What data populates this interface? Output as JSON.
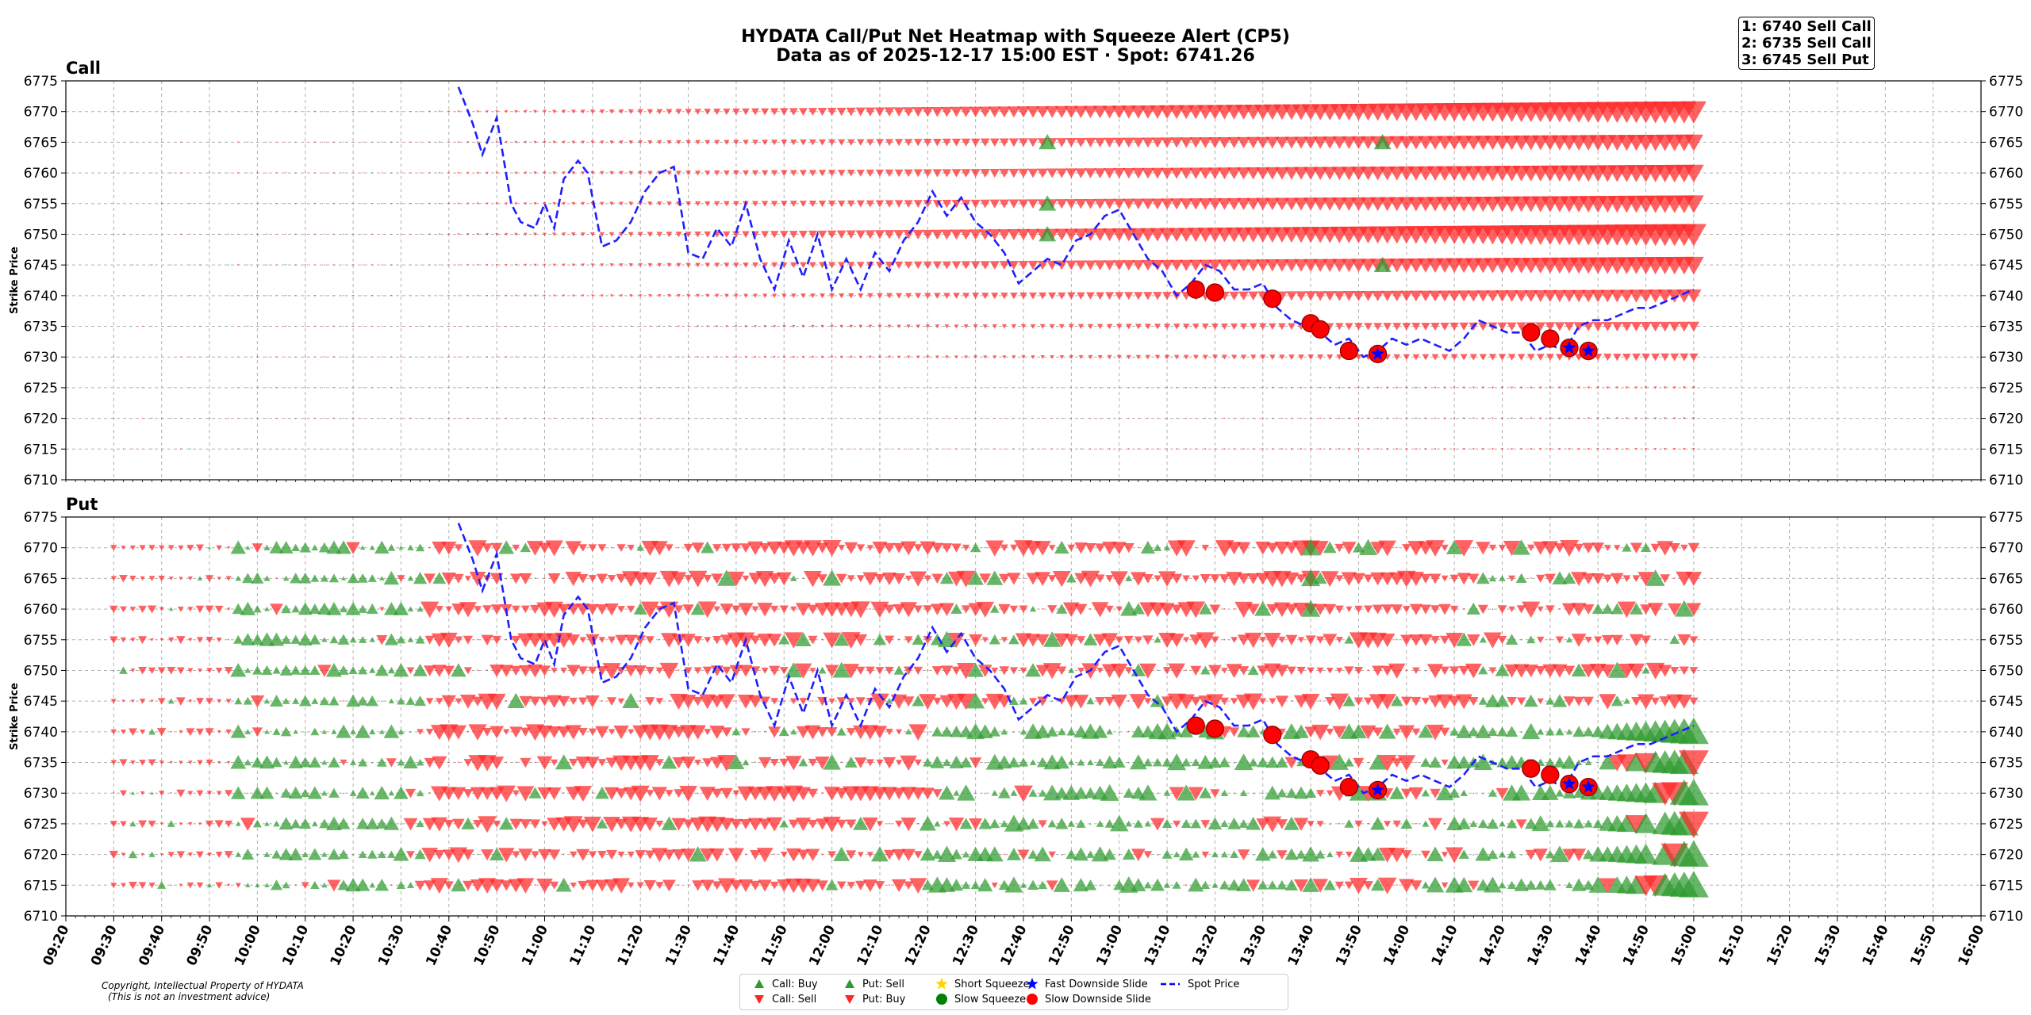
{
  "header": {
    "title_line1": "HYDATA Call/Put Net Heatmap with Squeeze Alert (CP5)",
    "title_line2": "Data as of 2025-12-17 15:00 EST · Spot: 6741.26"
  },
  "rank_box": [
    "1: 6740 Sell Call",
    "2: 6735 Sell Call",
    "3: 6745 Sell Put"
  ],
  "copyright": [
    "Copyright, Intellectual Property of HYDATA",
    "(This is not an investment advice)"
  ],
  "colors": {
    "buy_green": "#2e9a2e",
    "sell_red": "#ff2626",
    "spot_line": "#1f1fff",
    "squeeze_yellow": "#ffd400",
    "slide_red": "#ff0000",
    "slide_blue": "#0000ff"
  },
  "legend": [
    {
      "label": "Call: Buy",
      "marker": "triangle-up",
      "color": "#2e9a2e"
    },
    {
      "label": "Call: Sell",
      "marker": "triangle-down",
      "color": "#ff2626"
    },
    {
      "label": "Put: Sell",
      "marker": "triangle-up",
      "color": "#2e9a2e"
    },
    {
      "label": "Put: Buy",
      "marker": "triangle-down",
      "color": "#ff2626"
    },
    {
      "label": "Short Squeeze",
      "marker": "star",
      "color": "#ffd400"
    },
    {
      "label": "Slow Squeeze",
      "marker": "circle",
      "color": "#008000"
    },
    {
      "label": "Fast Downside Slide",
      "marker": "star",
      "color": "#0000ff"
    },
    {
      "label": "Slow Downside Slide",
      "marker": "circle",
      "color": "#ff0000"
    },
    {
      "label": "Spot Price",
      "marker": "dashed-line",
      "color": "#0000ff"
    }
  ],
  "chart_data": [
    {
      "type": "scatter",
      "panel": "Call",
      "title": "Call",
      "ylabel": "Strike Price",
      "ylim": [
        6710,
        6775
      ],
      "yticks": [
        6710,
        6715,
        6720,
        6725,
        6730,
        6735,
        6740,
        6745,
        6750,
        6755,
        6760,
        6765,
        6770,
        6775
      ],
      "strikes": [
        6715,
        6720,
        6725,
        6730,
        6735,
        6740,
        6745,
        6750,
        6755,
        6760,
        6765,
        6770
      ],
      "bubble_rows": [
        {
          "strike": 6770,
          "side": "sell",
          "from": "10:30",
          "to": "15:00",
          "size_start": 0.05,
          "size_end": 1.0
        },
        {
          "strike": 6765,
          "side": "sell",
          "from": "10:30",
          "to": "15:00",
          "size_start": 0.05,
          "size_end": 0.75
        },
        {
          "strike": 6760,
          "side": "sell",
          "from": "10:30",
          "to": "15:00",
          "size_start": 0.05,
          "size_end": 0.8
        },
        {
          "strike": 6755,
          "side": "sell",
          "from": "10:30",
          "to": "15:00",
          "size_start": 0.05,
          "size_end": 0.8
        },
        {
          "strike": 6750,
          "side": "sell",
          "from": "10:30",
          "to": "15:00",
          "size_start": 0.05,
          "size_end": 1.0
        },
        {
          "strike": 6745,
          "side": "sell",
          "from": "10:30",
          "to": "15:00",
          "size_start": 0.03,
          "size_end": 0.8
        },
        {
          "strike": 6740,
          "side": "sell",
          "from": "10:30",
          "to": "15:00",
          "size_start": 0.03,
          "size_end": 0.6
        },
        {
          "strike": 6735,
          "side": "sell",
          "from": "11:00",
          "to": "15:00",
          "size_start": 0.03,
          "size_end": 0.45
        },
        {
          "strike": 6730,
          "side": "sell",
          "from": "11:00",
          "to": "15:00",
          "size_start": 0.03,
          "size_end": 0.35
        },
        {
          "strike": 6725,
          "side": "sell",
          "from": "11:30",
          "to": "15:00",
          "size_start": 0.02,
          "size_end": 0.12
        },
        {
          "strike": 6720,
          "side": "sell",
          "from": "11:30",
          "to": "15:00",
          "size_start": 0.02,
          "size_end": 0.1
        },
        {
          "strike": 6715,
          "side": "sell",
          "from": "10:00",
          "to": "15:00",
          "size_start": 0.02,
          "size_end": 0.1
        }
      ],
      "call_buy_markers": [
        {
          "time": "12:45",
          "strike": 6765
        },
        {
          "time": "12:45",
          "strike": 6755
        },
        {
          "time": "12:45",
          "strike": 6750
        },
        {
          "time": "13:55",
          "strike": 6765
        },
        {
          "time": "13:55",
          "strike": 6745
        }
      ],
      "slow_downside_slide": [
        {
          "time": "13:16",
          "strike": 6741
        },
        {
          "time": "13:20",
          "strike": 6740.5
        },
        {
          "time": "13:32",
          "strike": 6739.5
        },
        {
          "time": "13:40",
          "strike": 6735.5
        },
        {
          "time": "13:42",
          "strike": 6734.5
        },
        {
          "time": "13:48",
          "strike": 6731
        },
        {
          "time": "13:54",
          "strike": 6730.5
        },
        {
          "time": "14:26",
          "strike": 6734
        },
        {
          "time": "14:30",
          "strike": 6733
        },
        {
          "time": "14:34",
          "strike": 6731.5
        },
        {
          "time": "14:38",
          "strike": 6731
        }
      ],
      "fast_downside_slide": [
        {
          "time": "13:54",
          "strike": 6730.5
        },
        {
          "time": "14:34",
          "strike": 6731.5
        },
        {
          "time": "14:38",
          "strike": 6731
        }
      ]
    },
    {
      "type": "scatter",
      "panel": "Put",
      "title": "Put",
      "ylabel": "Strike Price",
      "ylim": [
        6710,
        6775
      ],
      "yticks": [
        6710,
        6715,
        6720,
        6725,
        6730,
        6735,
        6740,
        6745,
        6750,
        6755,
        6760,
        6765,
        6770,
        6775
      ],
      "strikes": [
        6715,
        6720,
        6725,
        6730,
        6735,
        6740,
        6745,
        6750,
        6755,
        6760,
        6765,
        6770
      ],
      "regimes": [
        {
          "from": "09:30",
          "to": "09:55",
          "mix": "red"
        },
        {
          "from": "09:55",
          "to": "10:35",
          "mix": "green"
        },
        {
          "from": "10:35",
          "to": "11:30",
          "mix": "red"
        },
        {
          "from": "11:30",
          "to": "12:20",
          "mix": "red"
        },
        {
          "from": "12:20",
          "to": "13:10",
          "mix": "green-low"
        },
        {
          "from": "13:10",
          "to": "13:40",
          "mix": "split"
        },
        {
          "from": "13:40",
          "to": "14:10",
          "mix": "red-high"
        },
        {
          "from": "14:10",
          "to": "15:00",
          "mix": "green-low"
        }
      ],
      "put_sell_markers": [
        {
          "time": "13:40",
          "strike": 6770
        },
        {
          "time": "13:40",
          "strike": 6765
        },
        {
          "time": "13:40",
          "strike": 6760
        }
      ],
      "slow_downside_slide": [
        {
          "time": "13:16",
          "strike": 6741
        },
        {
          "time": "13:20",
          "strike": 6740.5
        },
        {
          "time": "13:32",
          "strike": 6739.5
        },
        {
          "time": "13:40",
          "strike": 6735.5
        },
        {
          "time": "13:42",
          "strike": 6734.5
        },
        {
          "time": "13:48",
          "strike": 6731
        },
        {
          "time": "13:54",
          "strike": 6730.5
        },
        {
          "time": "14:26",
          "strike": 6734
        },
        {
          "time": "14:30",
          "strike": 6733
        },
        {
          "time": "14:34",
          "strike": 6731.5
        },
        {
          "time": "14:38",
          "strike": 6731
        }
      ],
      "fast_downside_slide": [
        {
          "time": "13:54",
          "strike": 6730.5
        },
        {
          "time": "14:34",
          "strike": 6731.5
        },
        {
          "time": "14:38",
          "strike": 6731
        }
      ]
    }
  ],
  "spot_series": {
    "times": [
      "10:42",
      "10:45",
      "10:47",
      "10:50",
      "10:53",
      "10:55",
      "10:58",
      "11:00",
      "11:02",
      "11:04",
      "11:07",
      "11:09",
      "11:12",
      "11:15",
      "11:18",
      "11:21",
      "11:24",
      "11:27",
      "11:30",
      "11:33",
      "11:36",
      "11:39",
      "11:42",
      "11:45",
      "11:48",
      "11:51",
      "11:54",
      "11:57",
      "12:00",
      "12:03",
      "12:06",
      "12:09",
      "12:12",
      "12:15",
      "12:18",
      "12:21",
      "12:24",
      "12:27",
      "12:30",
      "12:33",
      "12:36",
      "12:39",
      "12:42",
      "12:45",
      "12:48",
      "12:51",
      "12:54",
      "12:57",
      "13:00",
      "13:03",
      "13:06",
      "13:09",
      "13:12",
      "13:15",
      "13:18",
      "13:21",
      "13:24",
      "13:27",
      "13:30",
      "13:33",
      "13:36",
      "13:39",
      "13:42",
      "13:45",
      "13:48",
      "13:51",
      "13:54",
      "13:57",
      "14:00",
      "14:03",
      "14:06",
      "14:09",
      "14:12",
      "14:15",
      "14:18",
      "14:21",
      "14:24",
      "14:27",
      "14:30",
      "14:33",
      "14:36",
      "14:39",
      "14:42",
      "14:45",
      "14:48",
      "14:51",
      "14:54",
      "14:57",
      "15:00"
    ],
    "values": [
      6774,
      6768,
      6763,
      6769,
      6755,
      6752,
      6751,
      6755,
      6751,
      6759,
      6762,
      6760,
      6748,
      6749,
      6752,
      6757,
      6760,
      6761,
      6747,
      6746,
      6751,
      6748,
      6755,
      6746,
      6741,
      6749,
      6743,
      6750,
      6741,
      6746,
      6741,
      6747,
      6744,
      6749,
      6752,
      6757,
      6753,
      6756,
      6752,
      6750,
      6747,
      6742,
      6744,
      6746,
      6745,
      6749,
      6750,
      6753,
      6754,
      6750,
      6746,
      6744,
      6740,
      6742,
      6745,
      6744,
      6741,
      6741,
      6742,
      6738,
      6736,
      6735,
      6734,
      6732,
      6733,
      6730,
      6731,
      6733,
      6732,
      6733,
      6732,
      6731,
      6733,
      6736,
      6735,
      6734,
      6734,
      6731,
      6732,
      6731,
      6735,
      6736,
      6736,
      6737,
      6738,
      6738,
      6739,
      6740,
      6741
    ]
  },
  "x_axis": {
    "ticks": [
      "09:20",
      "09:30",
      "09:40",
      "09:50",
      "10:00",
      "10:10",
      "10:20",
      "10:30",
      "10:40",
      "10:50",
      "11:00",
      "11:10",
      "11:20",
      "11:30",
      "11:40",
      "11:50",
      "12:00",
      "12:10",
      "12:20",
      "12:30",
      "12:40",
      "12:50",
      "13:00",
      "13:10",
      "13:20",
      "13:30",
      "13:40",
      "13:50",
      "14:00",
      "14:10",
      "14:20",
      "14:30",
      "14:40",
      "14:50",
      "15:00",
      "15:10",
      "15:20",
      "15:30",
      "15:40",
      "15:50",
      "16:00"
    ],
    "range": [
      "09:20",
      "16:00"
    ]
  }
}
